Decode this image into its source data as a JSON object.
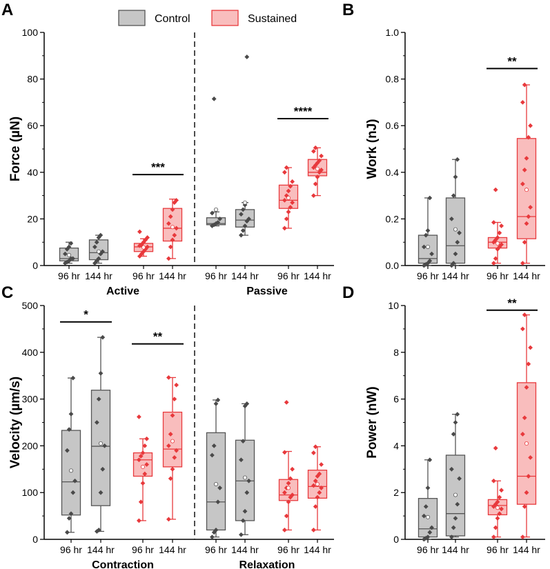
{
  "colors": {
    "control_fill": "#c6c6c6",
    "control_stroke": "#555555",
    "control_point": "#4a4a4a",
    "sustained_fill": "#f9bdbd",
    "sustained_stroke": "#e8393c",
    "sustained_point": "#e8393c"
  },
  "legend": {
    "control": "Control",
    "sustained": "Sustained"
  },
  "chart_data": [
    {
      "panel": "A",
      "type": "box",
      "ylabel": "Force (µN)",
      "ylim": [
        0,
        100
      ],
      "yticks": [
        0,
        20,
        40,
        60,
        80,
        100
      ],
      "divider_after_group": 2,
      "groups": [
        "Active",
        "Passive"
      ],
      "categories": [
        "96 hr",
        "144 hr",
        "96 hr",
        "144 hr",
        "96 hr",
        "144 hr",
        "96 hr",
        "144 hr"
      ],
      "boxes": [
        {
          "series": "Control",
          "min": 1,
          "q1": 2,
          "median": 3,
          "q3": 7.5,
          "max": 10,
          "mean": 4.5,
          "points": [
            1,
            1.5,
            2,
            3,
            3,
            5,
            7,
            8,
            9.5
          ]
        },
        {
          "series": "Control",
          "min": 1,
          "q1": 2.5,
          "median": 5.5,
          "q3": 11,
          "max": 13,
          "mean": 6,
          "points": [
            1,
            2,
            3,
            5,
            6,
            8,
            10,
            12,
            13
          ]
        },
        {
          "series": "Sustained",
          "min": 4,
          "q1": 6,
          "median": 8,
          "q3": 9.5,
          "max": 11.5,
          "mean": 7.8,
          "points": [
            4,
            5,
            6,
            7,
            8,
            8.5,
            9,
            10,
            11,
            12,
            14.5
          ]
        },
        {
          "series": "Sustained",
          "min": 3,
          "q1": 10.5,
          "median": 16,
          "q3": 24.5,
          "max": 28.5,
          "mean": 16.5,
          "points": [
            3,
            8,
            11,
            13,
            16,
            18,
            21,
            24,
            27,
            28
          ]
        },
        {
          "series": "Control",
          "min": 17,
          "q1": 17.5,
          "median": 18,
          "q3": 20.5,
          "max": 23,
          "mean": 24,
          "points": [
            17,
            17.5,
            18,
            18.5,
            20,
            22.5,
            71.5
          ]
        },
        {
          "series": "Control",
          "min": 13,
          "q1": 16.5,
          "median": 19.5,
          "q3": 24,
          "max": 27,
          "mean": 27,
          "points": [
            13,
            15,
            17,
            19,
            20,
            22,
            24,
            26,
            89.5
          ]
        },
        {
          "series": "Sustained",
          "min": 16,
          "q1": 24.5,
          "median": 28,
          "q3": 34.5,
          "max": 42,
          "mean": 29,
          "points": [
            16,
            20,
            23,
            25,
            27,
            28,
            30,
            32,
            34,
            36,
            40,
            42
          ]
        },
        {
          "series": "Sustained",
          "min": 30,
          "q1": 38.5,
          "median": 40,
          "q3": 45.5,
          "max": 50.5,
          "mean": 41.5,
          "points": [
            30,
            35,
            38,
            40,
            41,
            42,
            43,
            44,
            45,
            47,
            49,
            50.5
          ]
        }
      ],
      "significance": [
        {
          "label": "***",
          "from": 2,
          "to": 3,
          "y": 39
        },
        {
          "label": "****",
          "from": 6,
          "to": 7,
          "y": 63
        }
      ]
    },
    {
      "panel": "B",
      "type": "box",
      "ylabel": "Work (nJ)",
      "ylim": [
        0,
        1.0
      ],
      "yticks": [
        0.0,
        0.2,
        0.4,
        0.6,
        0.8,
        1.0
      ],
      "groups": [],
      "categories": [
        "96 hr",
        "144 hr",
        "96 hr",
        "144 hr"
      ],
      "boxes": [
        {
          "series": "Control",
          "min": 0,
          "q1": 0.01,
          "median": 0.03,
          "q3": 0.13,
          "max": 0.29,
          "mean": 0.08,
          "points": [
            0.0,
            0.005,
            0.01,
            0.02,
            0.05,
            0.08,
            0.13,
            0.15,
            0.29
          ]
        },
        {
          "series": "Control",
          "min": 0,
          "q1": 0.01,
          "median": 0.085,
          "q3": 0.29,
          "max": 0.455,
          "mean": 0.155,
          "points": [
            0.0,
            0.01,
            0.05,
            0.1,
            0.14,
            0.2,
            0.3,
            0.38,
            0.455
          ]
        },
        {
          "series": "Sustained",
          "min": 0.01,
          "q1": 0.075,
          "median": 0.1,
          "q3": 0.12,
          "max": 0.185,
          "mean": 0.095,
          "points": [
            0.01,
            0.03,
            0.07,
            0.08,
            0.09,
            0.1,
            0.11,
            0.12,
            0.14,
            0.17,
            0.185,
            0.325
          ]
        },
        {
          "series": "Sustained",
          "min": 0.01,
          "q1": 0.115,
          "median": 0.21,
          "q3": 0.545,
          "max": 0.775,
          "mean": 0.325,
          "points": [
            0.01,
            0.1,
            0.18,
            0.21,
            0.25,
            0.35,
            0.41,
            0.46,
            0.55,
            0.6,
            0.7,
            0.775
          ]
        }
      ],
      "significance": [
        {
          "label": "**",
          "from": 2,
          "to": 3,
          "y": 0.845
        }
      ]
    },
    {
      "panel": "C",
      "type": "box",
      "ylabel": "Velocity (µm/s)",
      "ylim": [
        0,
        500
      ],
      "yticks": [
        0,
        100,
        200,
        300,
        400,
        500
      ],
      "divider_after_group": 2,
      "groups": [
        "Contraction",
        "Relaxation"
      ],
      "categories": [
        "96 hr",
        "144 hr",
        "96 hr",
        "144 hr",
        "96 hr",
        "144 hr",
        "96 hr",
        "144 hr"
      ],
      "boxes": [
        {
          "series": "Control",
          "min": 15,
          "q1": 52,
          "median": 123,
          "q3": 233,
          "max": 345,
          "mean": 147,
          "points": [
            15,
            45,
            55,
            100,
            125,
            190,
            235,
            268,
            345
          ]
        },
        {
          "series": "Control",
          "min": 17,
          "q1": 72,
          "median": 199,
          "q3": 319,
          "max": 432,
          "mean": 205,
          "points": [
            17,
            20,
            100,
            150,
            200,
            250,
            300,
            355,
            432
          ]
        },
        {
          "series": "Sustained",
          "min": 40,
          "q1": 135,
          "median": 170,
          "q3": 185,
          "max": 215,
          "mean": 155,
          "points": [
            40,
            80,
            120,
            140,
            160,
            170,
            178,
            185,
            200,
            215,
            262
          ]
        },
        {
          "series": "Sustained",
          "min": 43,
          "q1": 155,
          "median": 193,
          "q3": 272,
          "max": 346,
          "mean": 210,
          "points": [
            43,
            130,
            150,
            175,
            190,
            200,
            225,
            265,
            300,
            330,
            346
          ]
        },
        {
          "series": "Control",
          "min": 5,
          "q1": 20,
          "median": 80,
          "q3": 228,
          "max": 298,
          "mean": 118,
          "points": [
            5,
            15,
            20,
            80,
            110,
            180,
            200,
            290,
            298
          ]
        },
        {
          "series": "Control",
          "min": 10,
          "q1": 40,
          "median": 125,
          "q3": 212,
          "max": 290,
          "mean": 132,
          "points": [
            10,
            40,
            60,
            100,
            125,
            170,
            210,
            285,
            290
          ]
        },
        {
          "series": "Sustained",
          "min": 20,
          "q1": 83,
          "median": 95,
          "q3": 128,
          "max": 188,
          "mean": 110,
          "points": [
            20,
            50,
            80,
            90,
            95,
            100,
            110,
            120,
            130,
            150,
            186,
            293
          ]
        },
        {
          "series": "Sustained",
          "min": 20,
          "q1": 88,
          "median": 113,
          "q3": 148,
          "max": 198,
          "mean": 118,
          "points": [
            20,
            70,
            90,
            100,
            110,
            115,
            125,
            135,
            140,
            160,
            185,
            198
          ]
        }
      ],
      "significance": [
        {
          "label": "*",
          "from": 0,
          "to": 1,
          "y": 465
        },
        {
          "label": "**",
          "from": 2,
          "to": 3,
          "y": 418
        }
      ]
    },
    {
      "panel": "D",
      "type": "box",
      "ylabel": "Power (nW)",
      "ylim": [
        0,
        10
      ],
      "yticks": [
        0,
        2,
        4,
        6,
        8,
        10
      ],
      "groups": [],
      "categories": [
        "96 hr",
        "144 hr",
        "96 hr",
        "144 hr"
      ],
      "boxes": [
        {
          "series": "Control",
          "min": 0,
          "q1": 0.1,
          "median": 0.45,
          "q3": 1.75,
          "max": 3.4,
          "mean": 0.95,
          "points": [
            0.0,
            0.05,
            0.1,
            0.3,
            0.5,
            1.0,
            1.4,
            2.2,
            3.4
          ]
        },
        {
          "series": "Control",
          "min": 0.1,
          "q1": 0.15,
          "median": 1.1,
          "q3": 3.6,
          "max": 5.35,
          "mean": 1.9,
          "points": [
            0.1,
            0.5,
            0.9,
            1.5,
            2.6,
            3.0,
            4.5,
            5.0,
            5.35
          ]
        },
        {
          "series": "Sustained",
          "min": 0.1,
          "q1": 1.05,
          "median": 1.45,
          "q3": 1.7,
          "max": 2.5,
          "mean": 1.35,
          "points": [
            0.1,
            0.5,
            0.9,
            1.1,
            1.3,
            1.4,
            1.5,
            1.6,
            1.8,
            2.1,
            2.5,
            3.9
          ]
        },
        {
          "series": "Sustained",
          "min": 0.1,
          "q1": 1.5,
          "median": 2.7,
          "q3": 6.7,
          "max": 9.6,
          "mean": 4.1,
          "points": [
            0.1,
            1.4,
            2.0,
            2.7,
            3.5,
            4.5,
            5.2,
            6.5,
            7.5,
            8.2,
            9.0,
            9.6
          ]
        }
      ],
      "significance": [
        {
          "label": "**",
          "from": 2,
          "to": 3,
          "y": 9.8
        }
      ]
    }
  ]
}
